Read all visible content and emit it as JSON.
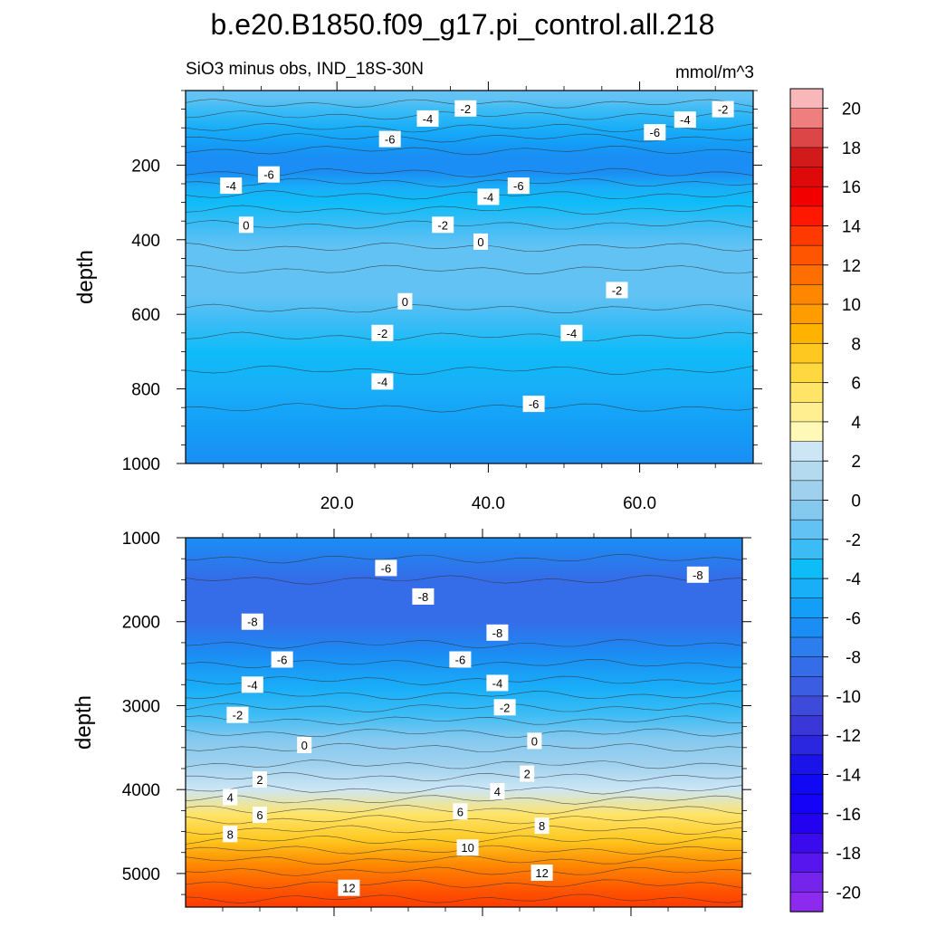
{
  "figure": {
    "title": "b.e20.B1850.f09_g17.pi_control.all.218",
    "subtitle_left": "SiO3 minus obs, IND_18S-30N",
    "subtitle_right": "mmol/m^3"
  },
  "chart_data": [
    {
      "type": "heatmap",
      "name": "upper-panel",
      "xlabel": "",
      "ylabel": "depth",
      "xlim": [
        0,
        75
      ],
      "ylim": [
        1000,
        0
      ],
      "x_ticks": [
        20,
        40,
        60
      ],
      "x_tick_labels": [
        "20.0",
        "40.0",
        "60.0"
      ],
      "y_ticks": [
        200,
        400,
        600,
        800,
        1000
      ],
      "y_tick_labels": [
        "200",
        "400",
        "600",
        "800",
        "1000"
      ],
      "depth_profile": [
        {
          "depth": 0,
          "value": -1
        },
        {
          "depth": 20,
          "value": -1.5
        },
        {
          "depth": 50,
          "value": -2.5
        },
        {
          "depth": 100,
          "value": -4
        },
        {
          "depth": 140,
          "value": -5.5
        },
        {
          "depth": 180,
          "value": -6.5
        },
        {
          "depth": 220,
          "value": -6
        },
        {
          "depth": 260,
          "value": -4.5
        },
        {
          "depth": 300,
          "value": -3.5
        },
        {
          "depth": 360,
          "value": -2
        },
        {
          "depth": 420,
          "value": -1
        },
        {
          "depth": 480,
          "value": -1
        },
        {
          "depth": 550,
          "value": -1.5
        },
        {
          "depth": 620,
          "value": -2.5
        },
        {
          "depth": 700,
          "value": -3.5
        },
        {
          "depth": 800,
          "value": -4.5
        },
        {
          "depth": 900,
          "value": -5.5
        },
        {
          "depth": 1000,
          "value": -6
        }
      ],
      "contour_labels": [
        {
          "text": "-2",
          "x": 37,
          "depth": 48
        },
        {
          "text": "-4",
          "x": 32,
          "depth": 75
        },
        {
          "text": "-6",
          "x": 27,
          "depth": 130
        },
        {
          "text": "-2",
          "x": 71,
          "depth": 50
        },
        {
          "text": "-4",
          "x": 66,
          "depth": 78
        },
        {
          "text": "-6",
          "x": 62,
          "depth": 112
        },
        {
          "text": "-6",
          "x": 11,
          "depth": 225
        },
        {
          "text": "-4",
          "x": 6,
          "depth": 255
        },
        {
          "text": "-6",
          "x": 44,
          "depth": 255
        },
        {
          "text": "-4",
          "x": 40,
          "depth": 285
        },
        {
          "text": "-2",
          "x": 34,
          "depth": 360
        },
        {
          "text": "0",
          "x": 8,
          "depth": 360
        },
        {
          "text": "0",
          "x": 39,
          "depth": 405
        },
        {
          "text": "0",
          "x": 29,
          "depth": 565
        },
        {
          "text": "-2",
          "x": 57,
          "depth": 535
        },
        {
          "text": "-2",
          "x": 26,
          "depth": 650
        },
        {
          "text": "-4",
          "x": 51,
          "depth": 650
        },
        {
          "text": "-4",
          "x": 26,
          "depth": 780
        },
        {
          "text": "-6",
          "x": 46,
          "depth": 840
        }
      ]
    },
    {
      "type": "heatmap",
      "name": "lower-panel",
      "xlabel": "",
      "ylabel": "depth",
      "xlim": [
        0,
        75
      ],
      "ylim": [
        5400,
        1000
      ],
      "y_ticks": [
        1000,
        2000,
        3000,
        4000,
        5000
      ],
      "y_tick_labels": [
        "1000",
        "2000",
        "3000",
        "4000",
        "5000"
      ],
      "depth_profile": [
        {
          "depth": 1000,
          "value": -6
        },
        {
          "depth": 1500,
          "value": -8
        },
        {
          "depth": 2000,
          "value": -8
        },
        {
          "depth": 2400,
          "value": -6.5
        },
        {
          "depth": 2800,
          "value": -4.5
        },
        {
          "depth": 3100,
          "value": -2.5
        },
        {
          "depth": 3400,
          "value": -0.5
        },
        {
          "depth": 3700,
          "value": 1
        },
        {
          "depth": 4000,
          "value": 3
        },
        {
          "depth": 4300,
          "value": 5.5
        },
        {
          "depth": 4600,
          "value": 8
        },
        {
          "depth": 4900,
          "value": 10.5
        },
        {
          "depth": 5200,
          "value": 12.5
        },
        {
          "depth": 5400,
          "value": 13.5
        }
      ],
      "contour_labels": [
        {
          "text": "-6",
          "x": 27,
          "depth": 1360
        },
        {
          "text": "-8",
          "x": 69,
          "depth": 1440
        },
        {
          "text": "-8",
          "x": 32,
          "depth": 1700
        },
        {
          "text": "-8",
          "x": 9,
          "depth": 2000
        },
        {
          "text": "-8",
          "x": 42,
          "depth": 2130
        },
        {
          "text": "-6",
          "x": 13,
          "depth": 2450
        },
        {
          "text": "-6",
          "x": 37,
          "depth": 2450
        },
        {
          "text": "-4",
          "x": 9,
          "depth": 2750
        },
        {
          "text": "-4",
          "x": 42,
          "depth": 2730
        },
        {
          "text": "-2",
          "x": 7,
          "depth": 3110
        },
        {
          "text": "-2",
          "x": 43,
          "depth": 3020
        },
        {
          "text": "0",
          "x": 16,
          "depth": 3470
        },
        {
          "text": "0",
          "x": 47,
          "depth": 3420
        },
        {
          "text": "2",
          "x": 10,
          "depth": 3880
        },
        {
          "text": "2",
          "x": 46,
          "depth": 3810
        },
        {
          "text": "4",
          "x": 6,
          "depth": 4090
        },
        {
          "text": "4",
          "x": 42,
          "depth": 4020
        },
        {
          "text": "6",
          "x": 10,
          "depth": 4300
        },
        {
          "text": "6",
          "x": 37,
          "depth": 4260
        },
        {
          "text": "8",
          "x": 6,
          "depth": 4530
        },
        {
          "text": "8",
          "x": 48,
          "depth": 4430
        },
        {
          "text": "10",
          "x": 38,
          "depth": 4690
        },
        {
          "text": "12",
          "x": 48,
          "depth": 4990
        },
        {
          "text": "12",
          "x": 22,
          "depth": 5170
        }
      ]
    }
  ],
  "colorbar": {
    "min": -21,
    "max": 21,
    "tick_labels": [
      "20",
      "18",
      "16",
      "14",
      "12",
      "10",
      "8",
      "6",
      "4",
      "2",
      "0",
      "-2",
      "-4",
      "-6",
      "-8",
      "-10",
      "-12",
      "-14",
      "-16",
      "-18",
      "-20"
    ],
    "colors_top_to_bottom": [
      "#f8b7b9",
      "#ef7f7e",
      "#dd4646",
      "#d21a1a",
      "#de0909",
      "#f20000",
      "#ff1800",
      "#ff3a00",
      "#ff5500",
      "#ff6e00",
      "#ff8700",
      "#ff9c00",
      "#ffb300",
      "#ffc820",
      "#ffd840",
      "#ffe468",
      "#ffef90",
      "#fff8b6",
      "#cce6f5",
      "#b3daef",
      "#9fd1ee",
      "#85c9ef",
      "#63c2f4",
      "#3cbcf5",
      "#0ebcf8",
      "#19aef8",
      "#139ef7",
      "#1a8ef4",
      "#2c7ded",
      "#356ce7",
      "#3b5de1",
      "#3e4bda",
      "#3a37d8",
      "#2b26df",
      "#1a14e9",
      "#1109f3",
      "#1403f6",
      "#2303ef",
      "#3a0bec",
      "#5716ed",
      "#7524ec",
      "#8c2aee"
    ]
  }
}
